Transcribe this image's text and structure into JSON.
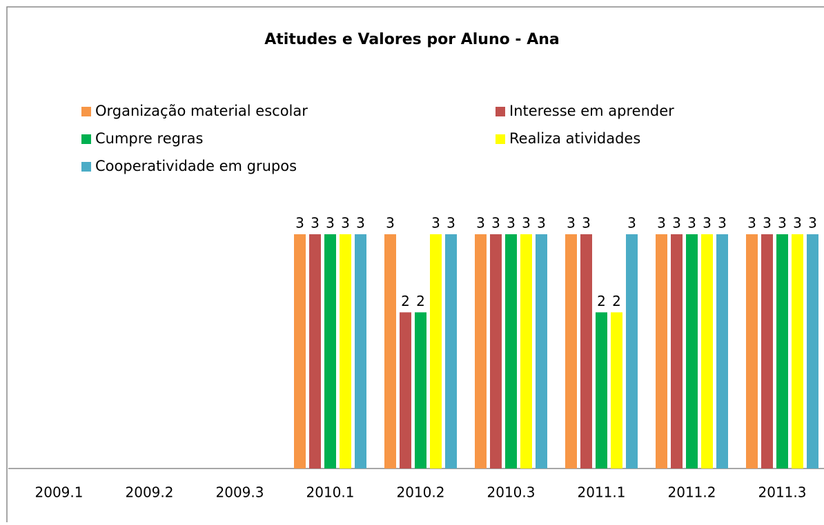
{
  "chart_data": {
    "type": "bar",
    "title": "Atitudes e Valores por Aluno -  Ana",
    "categories": [
      "2009.1",
      "2009.2",
      "2009.3",
      "2010.1",
      "2010.2",
      "2010.3",
      "2011.1",
      "2011.2",
      "2011.3"
    ],
    "series": [
      {
        "name": "Organização material escolar",
        "color": "#f79646",
        "values": [
          null,
          null,
          null,
          3,
          3,
          3,
          3,
          3,
          3
        ]
      },
      {
        "name": "Interesse em aprender",
        "color": "#c0504d",
        "values": [
          null,
          null,
          null,
          3,
          2,
          3,
          3,
          3,
          3
        ]
      },
      {
        "name": "Cumpre regras",
        "color": "#00b050",
        "values": [
          null,
          null,
          null,
          3,
          2,
          3,
          2,
          3,
          3
        ]
      },
      {
        "name": "Realiza atividades",
        "color": "#ffff00",
        "values": [
          null,
          null,
          null,
          3,
          3,
          3,
          2,
          3,
          3
        ]
      },
      {
        "name": "Cooperatividade em grupos",
        "color": "#4bacc6",
        "values": [
          null,
          null,
          null,
          3,
          3,
          3,
          3,
          3,
          3
        ]
      }
    ],
    "ylim": [
      0,
      3
    ]
  }
}
